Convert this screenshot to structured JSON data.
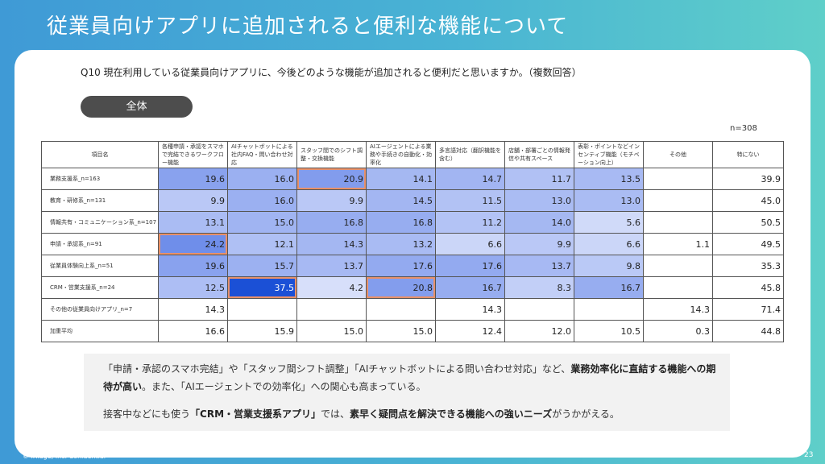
{
  "title": "従業員向けアプリに追加されると便利な機能について",
  "question": "Q10 現在利用している従業員向けアプリに、今後どのような機能が追加されると便利だと思いますか。（複数回答）",
  "segment_label": "全体",
  "n_total": "n=308",
  "table": {
    "row_header": "項目名",
    "columns": [
      "各種申請・承認をスマホで完結できるワークフロー機能",
      "AIチャットボットによる社内FAQ・問い合わせ対応",
      "スタッフ間でのシフト調整・交換機能",
      "AIエージェントによる業務や手続きの自動化・効率化",
      "多言語対応（翻訳機能を含む）",
      "店舗・部署ごとの情報発信や共有スペース",
      "表彰・ポイントなどインセンティブ機能（モチベーション向上）",
      "その他",
      "特にない"
    ],
    "rows": [
      {
        "label": "業務支援系_n=163",
        "values": [
          "19.6",
          "16.0",
          "20.9",
          "14.1",
          "14.7",
          "11.7",
          "13.5",
          "",
          "39.9"
        ]
      },
      {
        "label": "教育・研修系_n=131",
        "values": [
          "9.9",
          "16.0",
          "9.9",
          "14.5",
          "11.5",
          "13.0",
          "13.0",
          "",
          "45.0"
        ]
      },
      {
        "label": "情報共有・コミュニケーション系_n=107",
        "values": [
          "13.1",
          "15.0",
          "16.8",
          "16.8",
          "11.2",
          "14.0",
          "5.6",
          "",
          "50.5"
        ]
      },
      {
        "label": "申請・承認系_n=91",
        "values": [
          "24.2",
          "12.1",
          "14.3",
          "13.2",
          "6.6",
          "9.9",
          "6.6",
          "1.1",
          "49.5"
        ]
      },
      {
        "label": "従業員体験向上系_n=51",
        "values": [
          "19.6",
          "15.7",
          "13.7",
          "17.6",
          "17.6",
          "13.7",
          "9.8",
          "",
          "35.3"
        ]
      },
      {
        "label": "CRM・営業支援系_n=24",
        "values": [
          "12.5",
          "37.5",
          "4.2",
          "20.8",
          "16.7",
          "8.3",
          "16.7",
          "",
          "45.8"
        ]
      },
      {
        "label": "その他の従業員向けアプリ_n=7",
        "values": [
          "14.3",
          "",
          "",
          "",
          "14.3",
          "",
          "",
          "14.3",
          "71.4"
        ]
      },
      {
        "label": "加重平均",
        "values": [
          "16.6",
          "15.9",
          "15.0",
          "15.0",
          "12.4",
          "12.0",
          "10.5",
          "0.3",
          "44.8"
        ]
      }
    ]
  },
  "summary": {
    "l1_a": "「申請・承認のスマホ完結」や「スタッフ間シフト調整」「AIチャットボットによる問い合わせ対応」など、",
    "l1_b": "業務効率化に直結する機能への期待が高い",
    "l1_c": "。また、「AIエージェントでの効率化」への関心も高まっている。",
    "l2_a": "接客中などにも使う",
    "l2_b": "「CRM・営業支援系アプリ」",
    "l2_c": "では、",
    "l2_d": "素早く疑問点を解決できる機能への強いニーズ",
    "l2_e": "がうかがえる。"
  },
  "footer": "© iRidge, Inc. Conidential",
  "page_number": "23"
}
